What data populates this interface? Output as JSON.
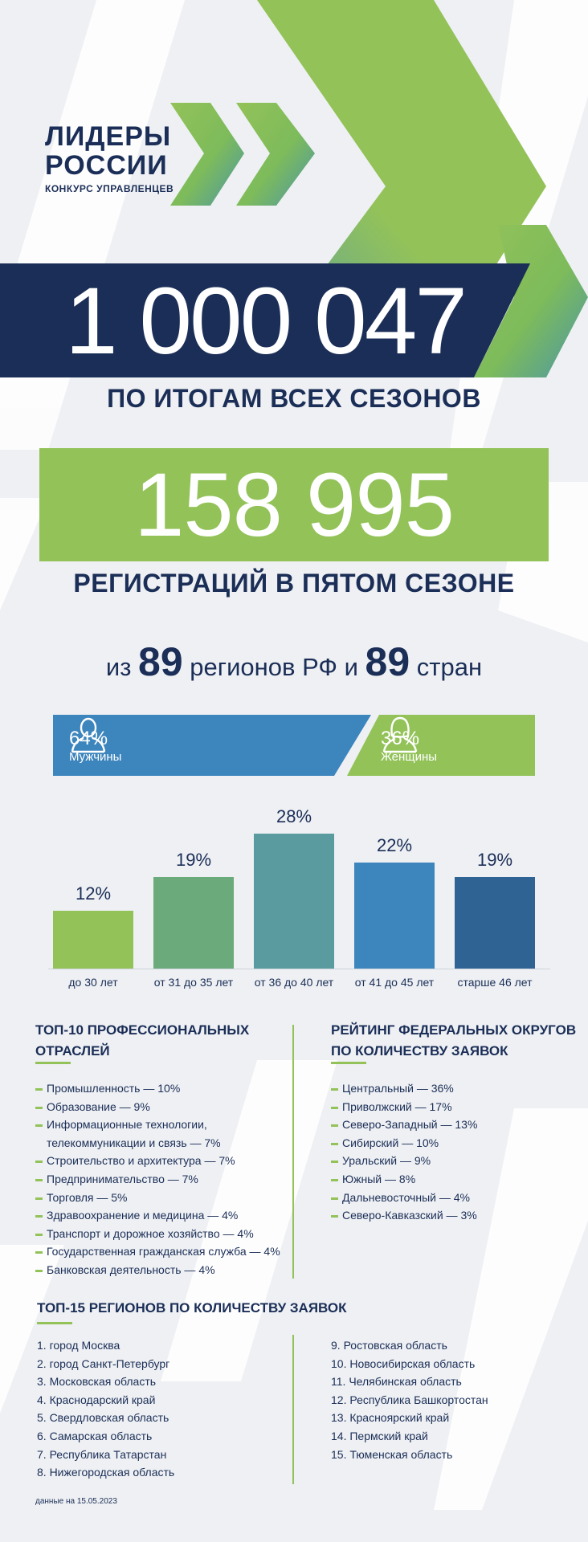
{
  "logo": {
    "line1": "ЛИДЕРЫ",
    "line2": "РОССИИ",
    "subtitle": "КОНКУРС УПРАВЛЕНЦЕВ"
  },
  "total": {
    "value": "1 000 047",
    "caption": "ПО ИТОГАМ ВСЕХ СЕЗОНОВ"
  },
  "season": {
    "value": "158 995",
    "caption": "РЕГИСТРАЦИЙ В ПЯТОМ СЕЗОНЕ"
  },
  "regions": {
    "prefix": "из",
    "regions_count": "89",
    "regions_text": "регионов РФ и",
    "countries_count": "89",
    "countries_text": "стран"
  },
  "gender": {
    "male": {
      "percent": "64%",
      "label": "Мужчины",
      "icon": "male-person-icon",
      "color": "#3d85bd"
    },
    "female": {
      "percent": "36%",
      "label": "Женщины",
      "icon": "female-person-icon",
      "color": "#93c259"
    }
  },
  "chart_data": {
    "type": "bar",
    "categories": [
      "до 30 лет",
      "от 31 до 35 лет",
      "от 36 до 40 лет",
      "от 41 до 45 лет",
      "старше 46 лет"
    ],
    "values": [
      12,
      19,
      28,
      22,
      19
    ],
    "data_labels": [
      "12%",
      "19%",
      "28%",
      "22%",
      "19%"
    ],
    "colors": [
      "#93c259",
      "#6aaa7b",
      "#5a9ba0",
      "#3d85bd",
      "#2e6393"
    ],
    "ylim": [
      0,
      30
    ],
    "grid": false
  },
  "industries": {
    "title_line1": "ТОП-10 ПРОФЕССИОНАЛЬНЫХ",
    "title_line2": "ОТРАСЛЕЙ",
    "items": [
      {
        "text": "Промышленность — 10%"
      },
      {
        "text": "Образование — 9%"
      },
      {
        "text": "Информационные технологии,"
      },
      {
        "text": "телекоммуникации и связь — 7%",
        "continuation": true
      },
      {
        "text": "Строительство и архитектура — 7%"
      },
      {
        "text": "Предпринимательство — 7%"
      },
      {
        "text": "Торговля — 5%"
      },
      {
        "text": "Здравоохранение и медицина — 4%"
      },
      {
        "text": "Транспорт и дорожное хозяйство — 4%"
      },
      {
        "text": "Государственная гражданская служба — 4%"
      },
      {
        "text": "Банковская деятельность — 4%"
      }
    ]
  },
  "districts": {
    "title_line1": "РЕЙТИНГ ФЕДЕРАЛЬНЫХ ОКРУГОВ",
    "title_line2": "ПО КОЛИЧЕСТВУ ЗАЯВОК",
    "items": [
      "Центральный — 36%",
      "Приволжский — 17%",
      "Северо-Западный — 13%",
      "Сибирский — 10%",
      "Уральский — 9%",
      "Южный — 8%",
      "Дальневосточный — 4%",
      "Северо-Кавказский — 3%"
    ]
  },
  "top_regions": {
    "title": "ТОП-15 РЕГИОНОВ ПО КОЛИЧЕСТВУ ЗАЯВОК",
    "left": [
      "1.  город Москва",
      "2. город Санкт-Петербург",
      "3. Московская область",
      "4. Краснодарский край",
      "5. Свердловская область",
      "6. Самарская область",
      "7. Республика Татарстан",
      "8. Нижегородская область"
    ],
    "right": [
      "9. Ростовская область",
      "10. Новосибирская область",
      "11. Челябинская область",
      "12. Республика Башкортостан",
      "13. Красноярский край",
      "14. Пермский край",
      "15. Тюменская область"
    ]
  },
  "footnote": "данные на 15.05.2023",
  "colors": {
    "navy": "#1b2e57",
    "green": "#93c259",
    "blue": "#3d85bd"
  }
}
